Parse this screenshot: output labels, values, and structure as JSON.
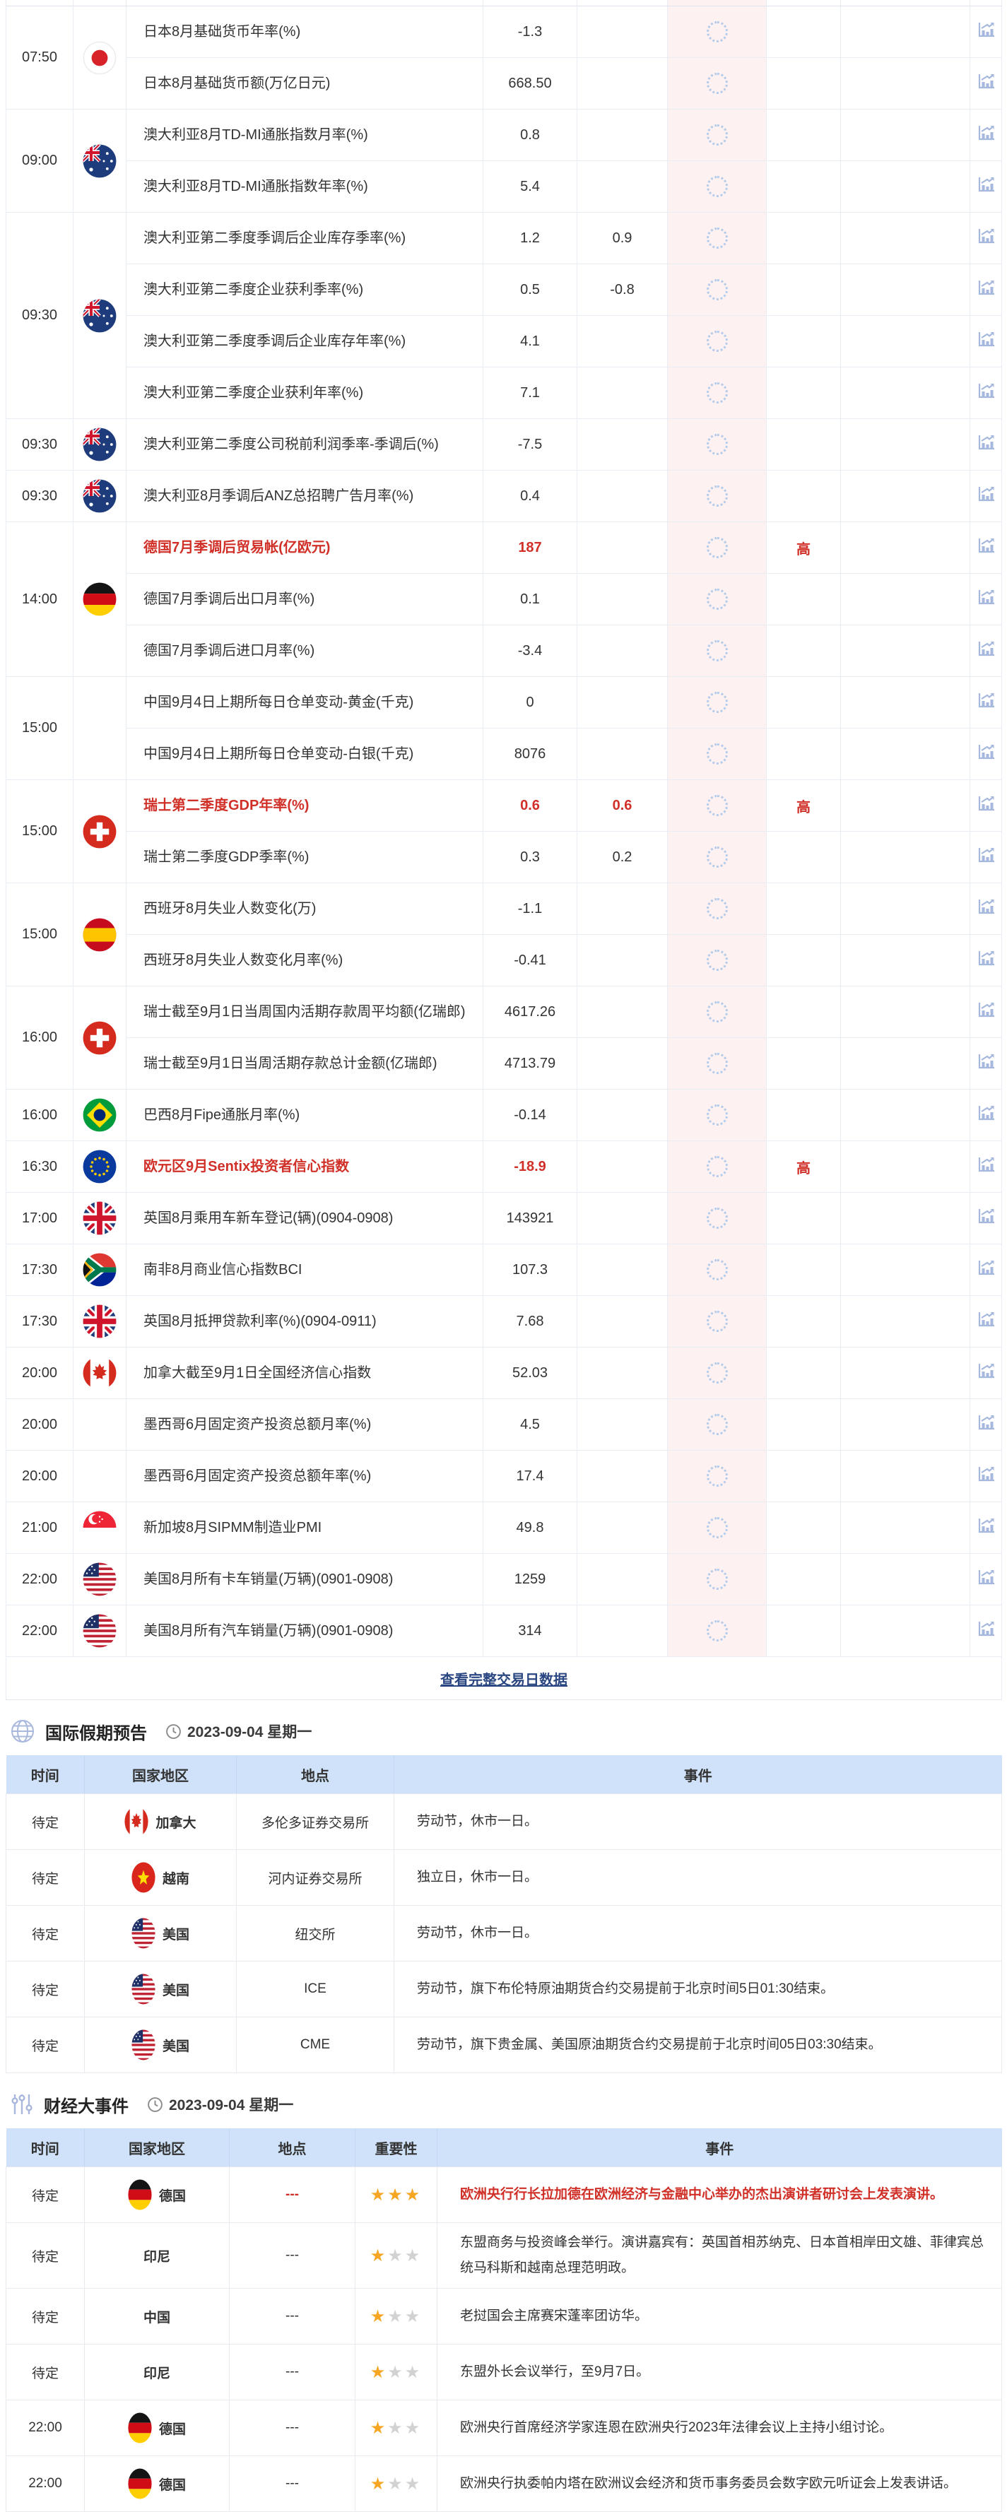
{
  "calendar": {
    "footer_link": "查看完整交易日数据",
    "groups": [
      {
        "time": "07:50",
        "flag": "japan",
        "rows": [
          {
            "name": "日本8月基础货币年率(%)",
            "prev": "-1.3"
          },
          {
            "name": "日本8月基础货币额(万亿日元)",
            "prev": "668.50"
          }
        ]
      },
      {
        "time": "09:00",
        "flag": "australia",
        "rows": [
          {
            "name": "澳大利亚8月TD-MI通胀指数月率(%)",
            "prev": "0.8"
          },
          {
            "name": "澳大利亚8月TD-MI通胀指数年率(%)",
            "prev": "5.4"
          }
        ]
      },
      {
        "time": "09:30",
        "flag": "australia",
        "rows": [
          {
            "name": "澳大利亚第二季度季调后企业库存季率(%)",
            "prev": "1.2",
            "forecast": "0.9"
          },
          {
            "name": "澳大利亚第二季度企业获利季率(%)",
            "prev": "0.5",
            "forecast": "-0.8"
          },
          {
            "name": "澳大利亚第二季度季调后企业库存年率(%)",
            "prev": "4.1"
          },
          {
            "name": "澳大利亚第二季度企业获利年率(%)",
            "prev": "7.1"
          }
        ]
      },
      {
        "time": "09:30",
        "flag": "australia",
        "rows": [
          {
            "name": "澳大利亚第二季度公司税前利润季率-季调后(%)",
            "prev": "-7.5"
          }
        ]
      },
      {
        "time": "09:30",
        "flag": "australia",
        "rows": [
          {
            "name": "澳大利亚8月季调后ANZ总招聘广告月率(%)",
            "prev": "0.4"
          }
        ]
      },
      {
        "time": "14:00",
        "flag": "germany",
        "rows": [
          {
            "name": "德国7月季调后贸易帐(亿欧元)",
            "prev": "187",
            "red": true,
            "importance": "高"
          },
          {
            "name": "德国7月季调后出口月率(%)",
            "prev": "0.1"
          },
          {
            "name": "德国7月季调后进口月率(%)",
            "prev": "-3.4"
          }
        ]
      },
      {
        "time": "15:00",
        "flag": null,
        "rows": [
          {
            "name": "中国9月4日上期所每日仓单变动-黄金(千克)",
            "prev": "0"
          },
          {
            "name": "中国9月4日上期所每日仓单变动-白银(千克)",
            "prev": "8076"
          }
        ]
      },
      {
        "time": "15:00",
        "flag": "switzerland",
        "rows": [
          {
            "name": "瑞士第二季度GDP年率(%)",
            "prev": "0.6",
            "forecast": "0.6",
            "red": true,
            "importance": "高"
          },
          {
            "name": "瑞士第二季度GDP季率(%)",
            "prev": "0.3",
            "forecast": "0.2"
          }
        ]
      },
      {
        "time": "15:00",
        "flag": "spain",
        "rows": [
          {
            "name": "西班牙8月失业人数变化(万)",
            "prev": "-1.1"
          },
          {
            "name": "西班牙8月失业人数变化月率(%)",
            "prev": "-0.41"
          }
        ]
      },
      {
        "time": "16:00",
        "flag": "switzerland",
        "rows": [
          {
            "name": "瑞士截至9月1日当周国内活期存款周平均额(亿瑞郎)",
            "prev": "4617.26"
          },
          {
            "name": "瑞士截至9月1日当周活期存款总计金额(亿瑞郎)",
            "prev": "4713.79"
          }
        ]
      },
      {
        "time": "16:00",
        "flag": "brazil",
        "rows": [
          {
            "name": "巴西8月Fipe通胀月率(%)",
            "prev": "-0.14"
          }
        ]
      },
      {
        "time": "16:30",
        "flag": "eu",
        "rows": [
          {
            "name": "欧元区9月Sentix投资者信心指数",
            "prev": "-18.9",
            "red": true,
            "importance": "高"
          }
        ]
      },
      {
        "time": "17:00",
        "flag": "uk",
        "rows": [
          {
            "name": "英国8月乘用车新车登记(辆)(0904-0908)",
            "prev": "143921"
          }
        ]
      },
      {
        "time": "17:30",
        "flag": "southafrica",
        "rows": [
          {
            "name": "南非8月商业信心指数BCI",
            "prev": "107.3"
          }
        ]
      },
      {
        "time": "17:30",
        "flag": "uk",
        "rows": [
          {
            "name": "英国8月抵押贷款利率(%)(0904-0911)",
            "prev": "7.68"
          }
        ]
      },
      {
        "time": "20:00",
        "flag": "canada",
        "rows": [
          {
            "name": "加拿大截至9月1日全国经济信心指数",
            "prev": "52.03"
          }
        ]
      },
      {
        "time": "20:00",
        "flag": null,
        "rows": [
          {
            "name": "墨西哥6月固定资产投资总额月率(%)",
            "prev": "4.5"
          }
        ]
      },
      {
        "time": "20:00",
        "flag": null,
        "rows": [
          {
            "name": "墨西哥6月固定资产投资总额年率(%)",
            "prev": "17.4"
          }
        ]
      },
      {
        "time": "21:00",
        "flag": "singapore",
        "rows": [
          {
            "name": "新加坡8月SIPMM制造业PMI",
            "prev": "49.8"
          }
        ]
      },
      {
        "time": "22:00",
        "flag": "usa",
        "rows": [
          {
            "name": "美国8月所有卡车销量(万辆)(0901-0908)",
            "prev": "1259"
          }
        ]
      },
      {
        "time": "22:00",
        "flag": "usa",
        "rows": [
          {
            "name": "美国8月所有汽车销量(万辆)(0901-0908)",
            "prev": "314"
          }
        ]
      }
    ]
  },
  "holidays": {
    "icon": "globe-icon",
    "title": "国际假期预告",
    "date": "2023-09-04 星期一",
    "headers": [
      "时间",
      "国家地区",
      "地点",
      "事件"
    ],
    "rows": [
      {
        "time": "待定",
        "flag": "canada",
        "country": "加拿大",
        "place": "多伦多证券交易所",
        "event": "劳动节，休市一日。"
      },
      {
        "time": "待定",
        "flag": "vietnam",
        "country": "越南",
        "place": "河内证券交易所",
        "event": "独立日，休市一日。"
      },
      {
        "time": "待定",
        "flag": "usa",
        "country": "美国",
        "place": "纽交所",
        "event": "劳动节，休市一日。"
      },
      {
        "time": "待定",
        "flag": "usa",
        "country": "美国",
        "place": "ICE",
        "event": "劳动节，旗下布伦特原油期货合约交易提前于北京时间5日01:30结束。"
      },
      {
        "time": "待定",
        "flag": "usa",
        "country": "美国",
        "place": "CME",
        "event": "劳动节，旗下贵金属、美国原油期货合约交易提前于北京时间05日03:30结束。"
      }
    ]
  },
  "events": {
    "icon": "sliders-icon",
    "title": "财经大事件",
    "date": "2023-09-04 星期一",
    "headers": [
      "时间",
      "国家地区",
      "地点",
      "重要性",
      "事件"
    ],
    "rows": [
      {
        "time": "待定",
        "flag": "germany",
        "country": "德国",
        "place": "---",
        "place_red": true,
        "stars": 3,
        "event": "欧洲央行行长拉加德在欧洲经济与金融中心举办的杰出演讲者研讨会上发表演讲。",
        "red": true
      },
      {
        "time": "待定",
        "flag": null,
        "country": "印尼",
        "place": "---",
        "stars": 1,
        "event": "东盟商务与投资峰会举行。演讲嘉宾有：英国首相苏纳克、日本首相岸田文雄、菲律宾总统马科斯和越南总理范明政。"
      },
      {
        "time": "待定",
        "flag": null,
        "country": "中国",
        "place": "---",
        "stars": 1,
        "event": "老挝国会主席赛宋蓬率团访华。"
      },
      {
        "time": "待定",
        "flag": null,
        "country": "印尼",
        "place": "---",
        "stars": 1,
        "event": "东盟外长会议举行，至9月7日。"
      },
      {
        "time": "22:00",
        "flag": "germany",
        "country": "德国",
        "place": "---",
        "stars": 1,
        "event": "欧洲央行首席经济学家连恩在欧洲央行2023年法律会议上主持小组讨论。"
      },
      {
        "time": "22:00",
        "flag": "germany",
        "country": "德国",
        "place": "---",
        "stars": 1,
        "event": "欧洲央行执委帕内塔在欧洲议会经济和货币事务委员会数字欧元听证会上发表讲话。"
      }
    ]
  },
  "colors": {
    "accent_red": "#d03028",
    "actual_bg": "#fdf1f1",
    "header_blue": "#cfe2f9",
    "star_gold": "#f6a623",
    "icon_blue": "#aab8dd",
    "link_blue": "#2b4782"
  }
}
